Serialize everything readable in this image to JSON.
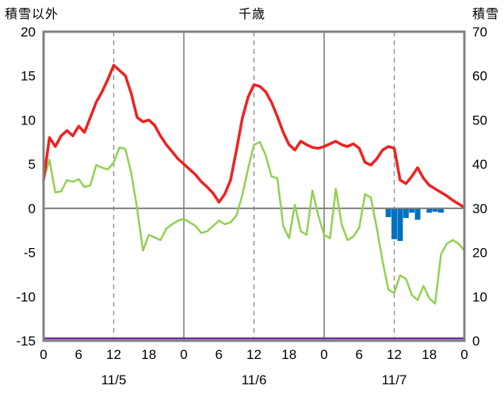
{
  "header": {
    "left_axis_title": "積雪以外",
    "chart_title": "千歳",
    "right_axis_title": "積雪"
  },
  "chart_data": {
    "type": "line",
    "title": "千歳",
    "x_max": 72,
    "x_tick_hours": [
      0,
      6,
      12,
      18,
      24,
      30,
      36,
      42,
      48,
      54,
      60,
      66,
      72
    ],
    "x_tick_labels": [
      "0",
      "6",
      "12",
      "18",
      "0",
      "6",
      "12",
      "18",
      "0",
      "6",
      "12",
      "18",
      "0"
    ],
    "day_label_hours": [
      12,
      36,
      60
    ],
    "day_labels": [
      "11/5",
      "11/6",
      "11/7"
    ],
    "left_axis": {
      "title": "積雪以外",
      "min": -15,
      "max": 20,
      "ticks": [
        20,
        15,
        10,
        5,
        0,
        -5,
        -10,
        -15
      ]
    },
    "right_axis": {
      "title": "積雪",
      "min": 0,
      "max": 70,
      "ticks": [
        70,
        60,
        50,
        40,
        30,
        20,
        10,
        0
      ]
    },
    "grid": {
      "solid_hours": [
        24,
        48
      ],
      "dashed_hours": [
        12,
        36,
        60
      ]
    },
    "series": [
      {
        "name": "red-line",
        "color": "#ee2222",
        "axis": "left",
        "width": 3.5,
        "values": [
          3.2,
          8.0,
          7.0,
          8.2,
          8.8,
          8.2,
          9.3,
          8.6,
          10.3,
          12.0,
          13.2,
          14.6,
          16.2,
          15.6,
          15.0,
          13.0,
          10.3,
          9.8,
          10.0,
          9.4,
          8.2,
          7.2,
          6.4,
          5.6,
          5.0,
          4.4,
          3.8,
          3.0,
          2.4,
          1.7,
          0.7,
          1.6,
          3.2,
          6.6,
          10.2,
          12.6,
          14.0,
          13.8,
          13.2,
          12.0,
          10.4,
          8.6,
          7.2,
          6.6,
          7.6,
          7.2,
          6.9,
          6.8,
          7.0,
          7.3,
          7.6,
          7.2,
          7.0,
          7.3,
          6.8,
          5.2,
          4.9,
          5.6,
          6.6,
          7.0,
          6.8,
          3.2,
          2.8,
          3.6,
          4.6,
          3.4,
          2.6,
          2.2,
          1.8,
          1.4,
          0.9,
          0.5,
          0.1
        ]
      },
      {
        "name": "green-line",
        "color": "#92d050",
        "axis": "left",
        "width": 2.5,
        "values": [
          3.2,
          5.5,
          1.8,
          1.9,
          3.2,
          3.0,
          3.3,
          2.4,
          2.6,
          4.9,
          4.6,
          4.4,
          5.2,
          6.9,
          6.7,
          4.0,
          0.0,
          -4.8,
          -3.0,
          -3.3,
          -3.6,
          -2.3,
          -1.8,
          -1.4,
          -1.2,
          -1.6,
          -2.0,
          -2.8,
          -2.6,
          -2.0,
          -1.4,
          -1.8,
          -1.6,
          -0.8,
          1.5,
          4.5,
          7.2,
          7.5,
          6.0,
          3.6,
          3.4,
          -2.0,
          -3.4,
          0.4,
          -2.6,
          -3.0,
          2.0,
          -0.8,
          -3.0,
          -3.4,
          2.2,
          -1.8,
          -3.6,
          -3.2,
          -2.2,
          1.6,
          1.2,
          -2.2,
          -6.0,
          -9.2,
          -9.6,
          -7.6,
          -8.0,
          -9.8,
          -10.4,
          -8.8,
          -10.2,
          -10.8,
          -5.2,
          -4.0,
          -3.6,
          -4.0,
          -4.8
        ]
      }
    ],
    "bars": {
      "name": "blue-bars",
      "color": "#0070c0",
      "axis": "left",
      "points": [
        {
          "hour": 59,
          "value": -1.0
        },
        {
          "hour": 60,
          "value": -3.5
        },
        {
          "hour": 61,
          "value": -3.7
        },
        {
          "hour": 62,
          "value": -1.1
        },
        {
          "hour": 63,
          "value": -0.5
        },
        {
          "hour": 64,
          "value": -1.3
        },
        {
          "hour": 66,
          "value": -0.5
        },
        {
          "hour": 67,
          "value": -0.4
        },
        {
          "hour": 68,
          "value": -0.5
        }
      ]
    },
    "baseline": {
      "name": "purple-line",
      "color": "#7030a0",
      "axis": "right",
      "value": 0,
      "width": 2.5
    },
    "colors": {
      "border": "#808080",
      "grid": "#808080",
      "zero_line": "#808080",
      "dashed": "#909090"
    }
  }
}
